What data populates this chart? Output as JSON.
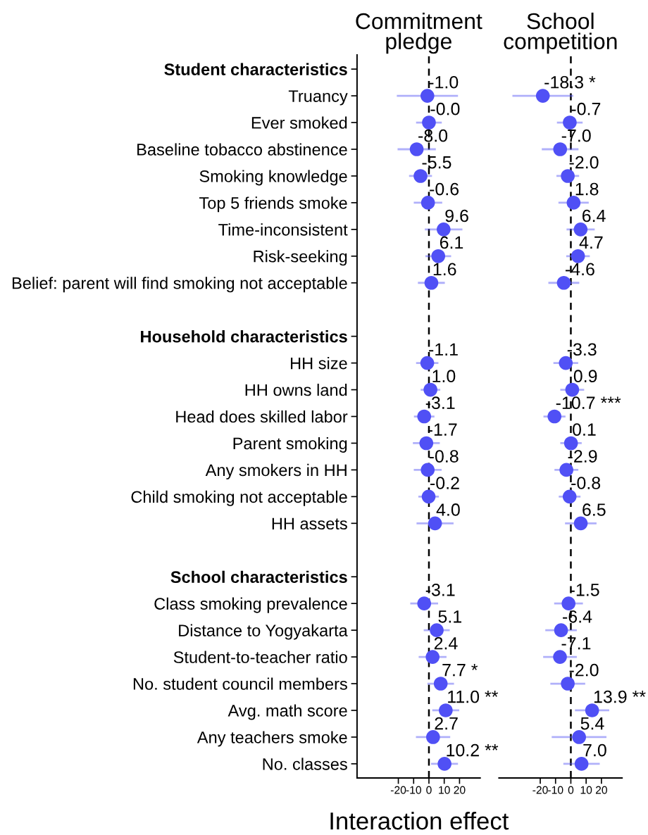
{
  "chart_data": [
    {
      "type": "scatter",
      "orientation": "horizontal",
      "title": "Commitment\npledge",
      "xlabel": "Interaction effect",
      "categories": [
        "Student characteristics",
        "Truancy",
        "Ever smoked",
        "Baseline tobacco abstinence",
        "Smoking knowledge",
        "Top 5 friends smoke",
        "Time-inconsistent",
        "Risk-seeking",
        "Belief: parent will find smoking not acceptable",
        null,
        "Household characteristics",
        "HH size",
        "HH owns land",
        "Head does skilled labor",
        "Parent smoking",
        "Any smokers in HH",
        "Child smoking not acceptable",
        "HH assets",
        null,
        "School characteristics",
        "Class smoking prevalence",
        "Distance to Yogyakarta",
        "Student-to-teacher ratio",
        "No. student council members",
        "Avg. math score",
        "Any teachers smoke",
        "No. classes"
      ],
      "series": [
        {
          "color": "#5050f5",
          "values": [
            null,
            -1.0,
            -0.0,
            -8.0,
            -5.5,
            -0.6,
            9.6,
            6.1,
            1.6,
            null,
            null,
            -1.1,
            1.0,
            -3.1,
            -1.7,
            -0.8,
            -0.2,
            4.0,
            null,
            null,
            -3.1,
            5.1,
            2.4,
            7.7,
            11.0,
            2.7,
            10.2
          ],
          "errors": [
            null,
            20,
            8.4,
            12.5,
            7.5,
            9.3,
            12.3,
            8.4,
            8.8,
            null,
            null,
            7.3,
            6.4,
            6.7,
            8.8,
            9.1,
            6.7,
            12.1,
            null,
            null,
            9.1,
            8.5,
            9.1,
            8.7,
            8.8,
            11.2,
            8.8
          ],
          "value_labels": [
            null,
            "-1.0",
            "-0.0",
            "-8.0",
            "-5.5",
            "-0.6",
            "9.6",
            "6.1",
            "1.6",
            null,
            null,
            "-1.1",
            "1.0",
            "-3.1",
            "-1.7",
            "-0.8",
            "-0.2",
            "4.0",
            null,
            null,
            "-3.1",
            "5.1",
            "2.4",
            "7.7 *",
            "11.0 **",
            "2.7",
            "10.2 **"
          ]
        }
      ],
      "xlim": [
        -47,
        33.5
      ],
      "xticks": [
        -20,
        -10,
        0,
        10,
        20
      ],
      "marker": "circle",
      "ref_lines": [
        {
          "axis": "x",
          "value": 0,
          "line_style": "dashed",
          "color": "#000000"
        }
      ]
    },
    {
      "type": "scatter",
      "orientation": "horizontal",
      "title": "School\ncompetition",
      "categories": [
        null,
        null,
        null,
        null,
        null,
        null,
        null,
        null,
        null,
        null,
        null,
        null,
        null,
        null,
        null,
        null,
        null,
        null,
        null,
        null,
        null,
        null,
        null,
        null,
        null,
        null,
        null
      ],
      "series": [
        {
          "color": "#5050f5",
          "values": [
            null,
            -18.3,
            -0.7,
            -7.0,
            -2.0,
            1.8,
            6.4,
            4.7,
            -4.6,
            null,
            null,
            -3.3,
            0.9,
            -10.7,
            0.1,
            -2.9,
            -0.8,
            6.5,
            null,
            null,
            -1.5,
            -6.4,
            -7.1,
            -2.0,
            13.9,
            5.4,
            7.0
          ],
          "errors": [
            null,
            19.9,
            8.4,
            12,
            7.4,
            9.9,
            9.2,
            7.7,
            10.1,
            null,
            null,
            8.1,
            7.8,
            7.2,
            7,
            7.8,
            7.1,
            10.3,
            null,
            null,
            9.4,
            10.3,
            11,
            11.4,
            11.2,
            17.9,
            11.9
          ],
          "value_labels": [
            null,
            "-18.3 *",
            "-0.7",
            "-7.0",
            "-2.0",
            "1.8",
            "6.4",
            "4.7",
            "-4.6",
            null,
            null,
            "-3.3",
            "0.9",
            "-10.7 ***",
            "0.1",
            "-2.9",
            "-0.8",
            "6.5",
            null,
            null,
            "-1.5",
            "-6.4",
            "-7.1",
            "-2.0",
            "13.9 **",
            "5.4",
            "7.0"
          ]
        }
      ],
      "xlim": [
        -47,
        33.5
      ],
      "xticks": [
        -20,
        -10,
        0,
        10,
        20
      ],
      "marker": "circle",
      "tick_labels": "x",
      "ref_lines": [
        {
          "axis": "x",
          "value": 0,
          "line_style": "dashed",
          "color": "#000000"
        }
      ]
    }
  ]
}
